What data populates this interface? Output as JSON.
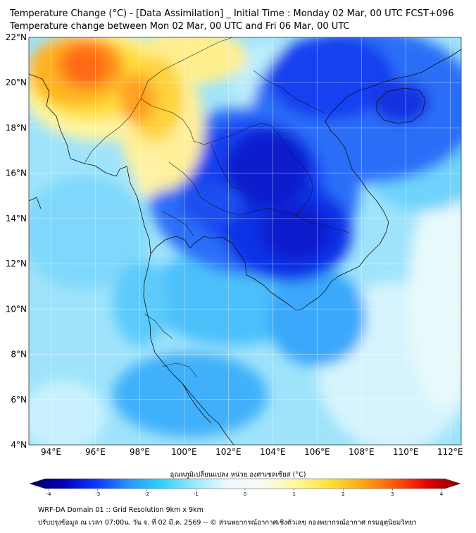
{
  "title_line1": "Temperature Change (°C) - [Data Assimilation] _ Initial Time : Monday 02 Mar, 00 UTC FCST+096",
  "title_line2": "Temperature change between Mon 02 Mar, 00 UTC and Fri 06 Mar, 00 UTC",
  "map": {
    "lat_range": [
      4,
      22
    ],
    "lon_range": [
      93,
      112.5
    ],
    "lat_ticks": [
      "4°N",
      "6°N",
      "8°N",
      "10°N",
      "12°N",
      "14°N",
      "16°N",
      "18°N",
      "20°N",
      "22°N"
    ],
    "lat_values": [
      4,
      6,
      8,
      10,
      12,
      14,
      16,
      18,
      20,
      22
    ],
    "lon_ticks": [
      "94°E",
      "96°E",
      "98°E",
      "100°E",
      "102°E",
      "104°E",
      "106°E",
      "108°E",
      "110°E",
      "112°E"
    ],
    "lon_values": [
      94,
      96,
      98,
      100,
      102,
      104,
      106,
      108,
      110,
      112
    ],
    "grid": true,
    "warm_centers": [
      {
        "lon": 96,
        "lat": 20.8,
        "value": 2.7
      },
      {
        "lon": 97.5,
        "lat": 19.6,
        "value": 2.2
      },
      {
        "lon": 99,
        "lat": 21.4,
        "value": 1.6
      },
      {
        "lon": 98.6,
        "lat": 17.2,
        "value": 1.0
      }
    ],
    "cold_centers": [
      {
        "lon": 103.6,
        "lat": 15.2,
        "value": -3.3
      },
      {
        "lon": 104.7,
        "lat": 13.3,
        "value": -3.2
      },
      {
        "lon": 106.3,
        "lat": 21.2,
        "value": -2.8
      },
      {
        "lon": 109.8,
        "lat": 19.3,
        "value": -2.4
      },
      {
        "lon": 101.2,
        "lat": 14.3,
        "value": -2.4
      },
      {
        "lon": 100.7,
        "lat": 5.6,
        "value": -1.8
      }
    ]
  },
  "colorbar": {
    "label": "อุณหภูมิเปลี่ยนแปลง หน่วย องศาเซลเซียส (°C)",
    "ticks": [
      "-4",
      "-3",
      "-2",
      "-1",
      "0",
      "1",
      "2",
      "3",
      "4"
    ],
    "tick_values": [
      -4,
      -3,
      -2,
      -1,
      0,
      1,
      2,
      3,
      4
    ],
    "range": [
      -4,
      4
    ],
    "colors": [
      "#00005a",
      "#0000b4",
      "#0a37ff",
      "#2896ff",
      "#2ed4fa",
      "#9ce9fb",
      "#eef9fc",
      "#fafaf5",
      "#fff9a0",
      "#ffe23a",
      "#ffaa14",
      "#ff5a0a",
      "#e60000",
      "#7d0000"
    ]
  },
  "footer_line1": "WRF-DA Domain 01 :: Grid Resolution 9km x 9km",
  "footer_line2": "ปรับปรุงข้อมูล ณ เวลา 07:00น. วัน จ. ที่ 02 มี.ค. 2569 -- © ส่วนพยากรณ์อากาศเชิงตัวเลข กองพยากรณ์อากาศ กรมอุตุนิยมวิทยา"
}
